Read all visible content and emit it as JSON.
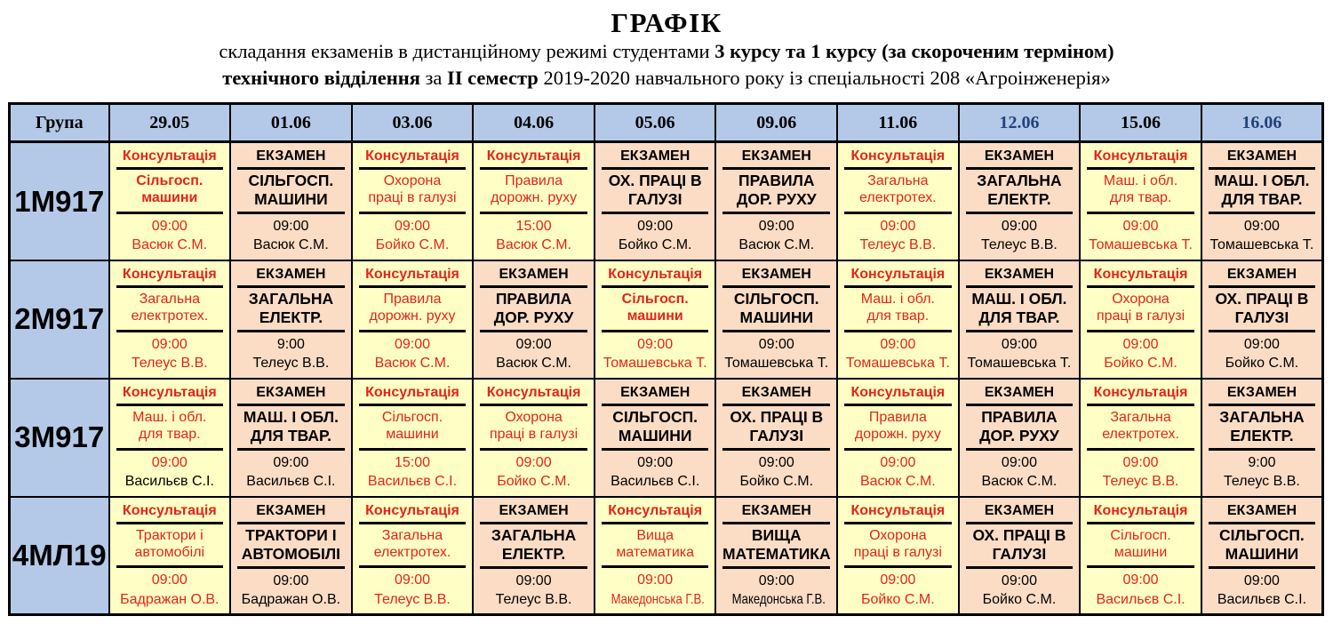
{
  "colors": {
    "header_bg": "#b3c9e7",
    "consultation_bg": "#ffffc5",
    "exam_bg": "#fbdcc5",
    "red_text": "#e3241b",
    "date_blue": "#24427c",
    "border": "#000000"
  },
  "header": {
    "title": "ГРАФІК",
    "line1": [
      {
        "text": "складання екзаменів в дистанційному режимі студентами "
      },
      {
        "text": "3 курсу та 1 курсу (за скороченим терміном)"
      }
    ],
    "line2": [
      {
        "text": "технічного відділення"
      },
      {
        "text": " за "
      },
      {
        "text": "ІІ семестр"
      },
      {
        "text": " 2019-2020 навчального  року із спеціальності 208 «Агроінженерія»"
      }
    ]
  },
  "table": {
    "columns": [
      {
        "label": "Група",
        "blue": false
      },
      {
        "label": "29.05",
        "blue": false
      },
      {
        "label": "01.06",
        "blue": false
      },
      {
        "label": "03.06",
        "blue": false
      },
      {
        "label": "04.06",
        "blue": false
      },
      {
        "label": "05.06",
        "blue": false
      },
      {
        "label": "09.06",
        "blue": false
      },
      {
        "label": "11.06",
        "blue": false
      },
      {
        "label": "12.06",
        "blue": true
      },
      {
        "label": "15.06",
        "blue": false
      },
      {
        "label": "16.06",
        "blue": true
      }
    ],
    "rows": [
      {
        "group": "1М917",
        "cells": [
          {
            "type": "consultation",
            "title": "Консультація",
            "subject": "Сільгосп.\nмашини",
            "subject_bold": true,
            "time": "09:00",
            "teacher": "Васюк С.М."
          },
          {
            "type": "exam",
            "title": "ЕКЗАМЕН",
            "subject": "СІЛЬГОСП.\nМАШИНИ",
            "time": "09:00",
            "teacher": "Васюк С.М."
          },
          {
            "type": "consultation",
            "title": "Консультація",
            "subject": "Охорона\nпраці в галузі",
            "time": "09:00",
            "teacher": "Бойко С.М."
          },
          {
            "type": "consultation",
            "title": "Консультація",
            "subject": "Правила\nдорожн. руху",
            "time": "15:00",
            "teacher": "Васюк С.М."
          },
          {
            "type": "exam",
            "title": "ЕКЗАМЕН",
            "subject": "ОХ. ПРАЦІ В\nГАЛУЗІ",
            "time": "09:00",
            "teacher": "Бойко С.М."
          },
          {
            "type": "exam",
            "title": "ЕКЗАМЕН",
            "subject": "ПРАВИЛА\nДОР. РУХУ",
            "time": "09:00",
            "teacher": "Васюк С.М."
          },
          {
            "type": "consultation",
            "title": "Консультація",
            "subject": "Загальна\nелектротех.",
            "time": "09:00",
            "teacher": "Телеус В.В."
          },
          {
            "type": "exam",
            "title": "ЕКЗАМЕН",
            "subject": "ЗАГАЛЬНА\nЕЛЕКТР.",
            "time": "09:00",
            "teacher": "Телеус В.В."
          },
          {
            "type": "consultation",
            "title": "Консультація",
            "subject": "Маш. і обл.\nдля твар.",
            "time": "09:00",
            "teacher": "Томашевська Т."
          },
          {
            "type": "exam",
            "title": "ЕКЗАМЕН",
            "subject": "МАШ. І ОБЛ.\nДЛЯ ТВАР.",
            "time": "09:00",
            "teacher": "Томашевська Т."
          }
        ]
      },
      {
        "group": "2М917",
        "cells": [
          {
            "type": "consultation",
            "title": "Консультація",
            "subject": "Загальна\nелектротех.",
            "time": "09:00",
            "teacher": "Телеус В.В."
          },
          {
            "type": "exam",
            "title": "ЕКЗАМЕН",
            "subject": "ЗАГАЛЬНА\nЕЛЕКТР.",
            "time": "9:00",
            "teacher": "Телеус В.В."
          },
          {
            "type": "consultation",
            "title": "Консультація",
            "subject": "Правила\nдорожн. руху",
            "time": "09:00",
            "teacher": "Васюк С.М."
          },
          {
            "type": "exam",
            "title": "ЕКЗАМЕН",
            "subject": "ПРАВИЛА\nДОР. РУХУ",
            "time": "09:00",
            "teacher": "Васюк С.М."
          },
          {
            "type": "consultation",
            "title": "Консультація",
            "subject": "Сільгосп.\nмашини",
            "subject_bold": true,
            "time": "09:00",
            "teacher": "Томашевська Т."
          },
          {
            "type": "exam",
            "title": "ЕКЗАМЕН",
            "subject": "СІЛЬГОСП.\nМАШИНИ",
            "time": "09:00",
            "teacher": "Томашевська Т."
          },
          {
            "type": "consultation",
            "title": "Консультація",
            "subject": "Маш. і обл.\nдля твар.",
            "time": "09:00",
            "teacher": "Томашевська Т."
          },
          {
            "type": "exam",
            "title": "ЕКЗАМЕН",
            "subject": "МАШ. І ОБЛ.\nДЛЯ ТВАР.",
            "time": "09:00",
            "teacher": "Томашевська Т."
          },
          {
            "type": "consultation",
            "title": "Консультація",
            "subject": "Охорона\nпраці в галузі",
            "time": "09:00",
            "teacher": "Бойко С.М."
          },
          {
            "type": "exam",
            "title": "ЕКЗАМЕН",
            "subject": "ОХ. ПРАЦІ В\nГАЛУЗІ",
            "time": "09:00",
            "teacher": "Бойко С.М."
          }
        ]
      },
      {
        "group": "3М917",
        "cells": [
          {
            "type": "consultation",
            "title": "Консультація",
            "subject": "Маш. і обл.\nдля твар.",
            "time": "09:00",
            "teacher": "Васильєв С.І.",
            "teacher_black": true
          },
          {
            "type": "exam",
            "title": "ЕКЗАМЕН",
            "subject": "МАШ. І ОБЛ.\nДЛЯ ТВАР.",
            "time": "09:00",
            "teacher": "Васильєв С.І."
          },
          {
            "type": "consultation",
            "title": "Консультація",
            "subject": "Сільгосп.\nмашини",
            "time": "15:00",
            "teacher": "Васильєв С.І."
          },
          {
            "type": "consultation",
            "title": "Консультація",
            "subject": "Охорона\nпраці в галузі",
            "time": "09:00",
            "teacher": "Бойко С.М."
          },
          {
            "type": "exam",
            "title": "ЕКЗАМЕН",
            "subject": "СІЛЬГОСП.\nМАШИНИ",
            "time": "09:00",
            "teacher": "Васильєв С.І."
          },
          {
            "type": "exam",
            "title": "ЕКЗАМЕН",
            "subject": "ОХ. ПРАЦІ В\nГАЛУЗІ",
            "time": "09:00",
            "teacher": "Бойко С.М."
          },
          {
            "type": "consultation",
            "title": "Консультація",
            "subject": "Правила\nдорожн. руху",
            "time": "09:00",
            "teacher": "Васюк С.М."
          },
          {
            "type": "exam",
            "title": "ЕКЗАМЕН",
            "subject": "ПРАВИЛА\nДОР. РУХУ",
            "time": "09:00",
            "teacher": "Васюк С.М."
          },
          {
            "type": "consultation",
            "title": "Консультація",
            "subject": "Загальна\nелектротех.",
            "time": "09:00",
            "teacher": "Телеус В.В."
          },
          {
            "type": "exam",
            "title": "ЕКЗАМЕН",
            "subject": "ЗАГАЛЬНА\nЕЛЕКТР.",
            "time": "9:00",
            "teacher": "Телеус В.В."
          }
        ]
      },
      {
        "group": "4МЛ19",
        "cells": [
          {
            "type": "consultation",
            "title": "Консультація",
            "subject": "Трактори і\nавтомобілі",
            "time": "09:00",
            "teacher": "Бадражан О.В."
          },
          {
            "type": "exam",
            "title": "ЕКЗАМЕН",
            "subject": "ТРАКТОРИ І\nАВТОМОБІЛІ",
            "time": "09:00",
            "teacher": "Бадражан О.В."
          },
          {
            "type": "consultation",
            "title": "Консультація",
            "subject": "Загальна\nелектротех.",
            "time": "09:00",
            "teacher": "Телеус В.В."
          },
          {
            "type": "exam",
            "title": "ЕКЗАМЕН",
            "subject": "ЗАГАЛЬНА\nЕЛЕКТР.",
            "time": "09:00",
            "teacher": "Телеус В.В."
          },
          {
            "type": "consultation",
            "title": "Консультація",
            "subject": "Вища\nматематика",
            "time": "09:00",
            "teacher": "Македонська Г.В.",
            "condensed": true
          },
          {
            "type": "exam",
            "title": "ЕКЗАМЕН",
            "subject": "ВИЩА\nМАТЕМАТИКА",
            "time": "09:00",
            "teacher": "Македонська Г.В.",
            "condensed": true
          },
          {
            "type": "consultation",
            "title": "Консультація",
            "subject": "Охорона\nпраці в галузі",
            "time": "09:00",
            "teacher": "Бойко С.М."
          },
          {
            "type": "exam",
            "title": "ЕКЗАМЕН",
            "subject": "ОХ. ПРАЦІ В\nГАЛУЗІ",
            "time": "09:00",
            "teacher": "Бойко С.М."
          },
          {
            "type": "consultation",
            "title": "Консультація",
            "subject": "Сільгосп.\nмашини",
            "time": "09:00",
            "teacher": "Васильєв С.І."
          },
          {
            "type": "exam",
            "title": "ЕКЗАМЕН",
            "subject": "СІЛЬГОСП.\nМАШИНИ",
            "time": "09:00",
            "teacher": "Васильєв С.І."
          }
        ]
      }
    ]
  }
}
